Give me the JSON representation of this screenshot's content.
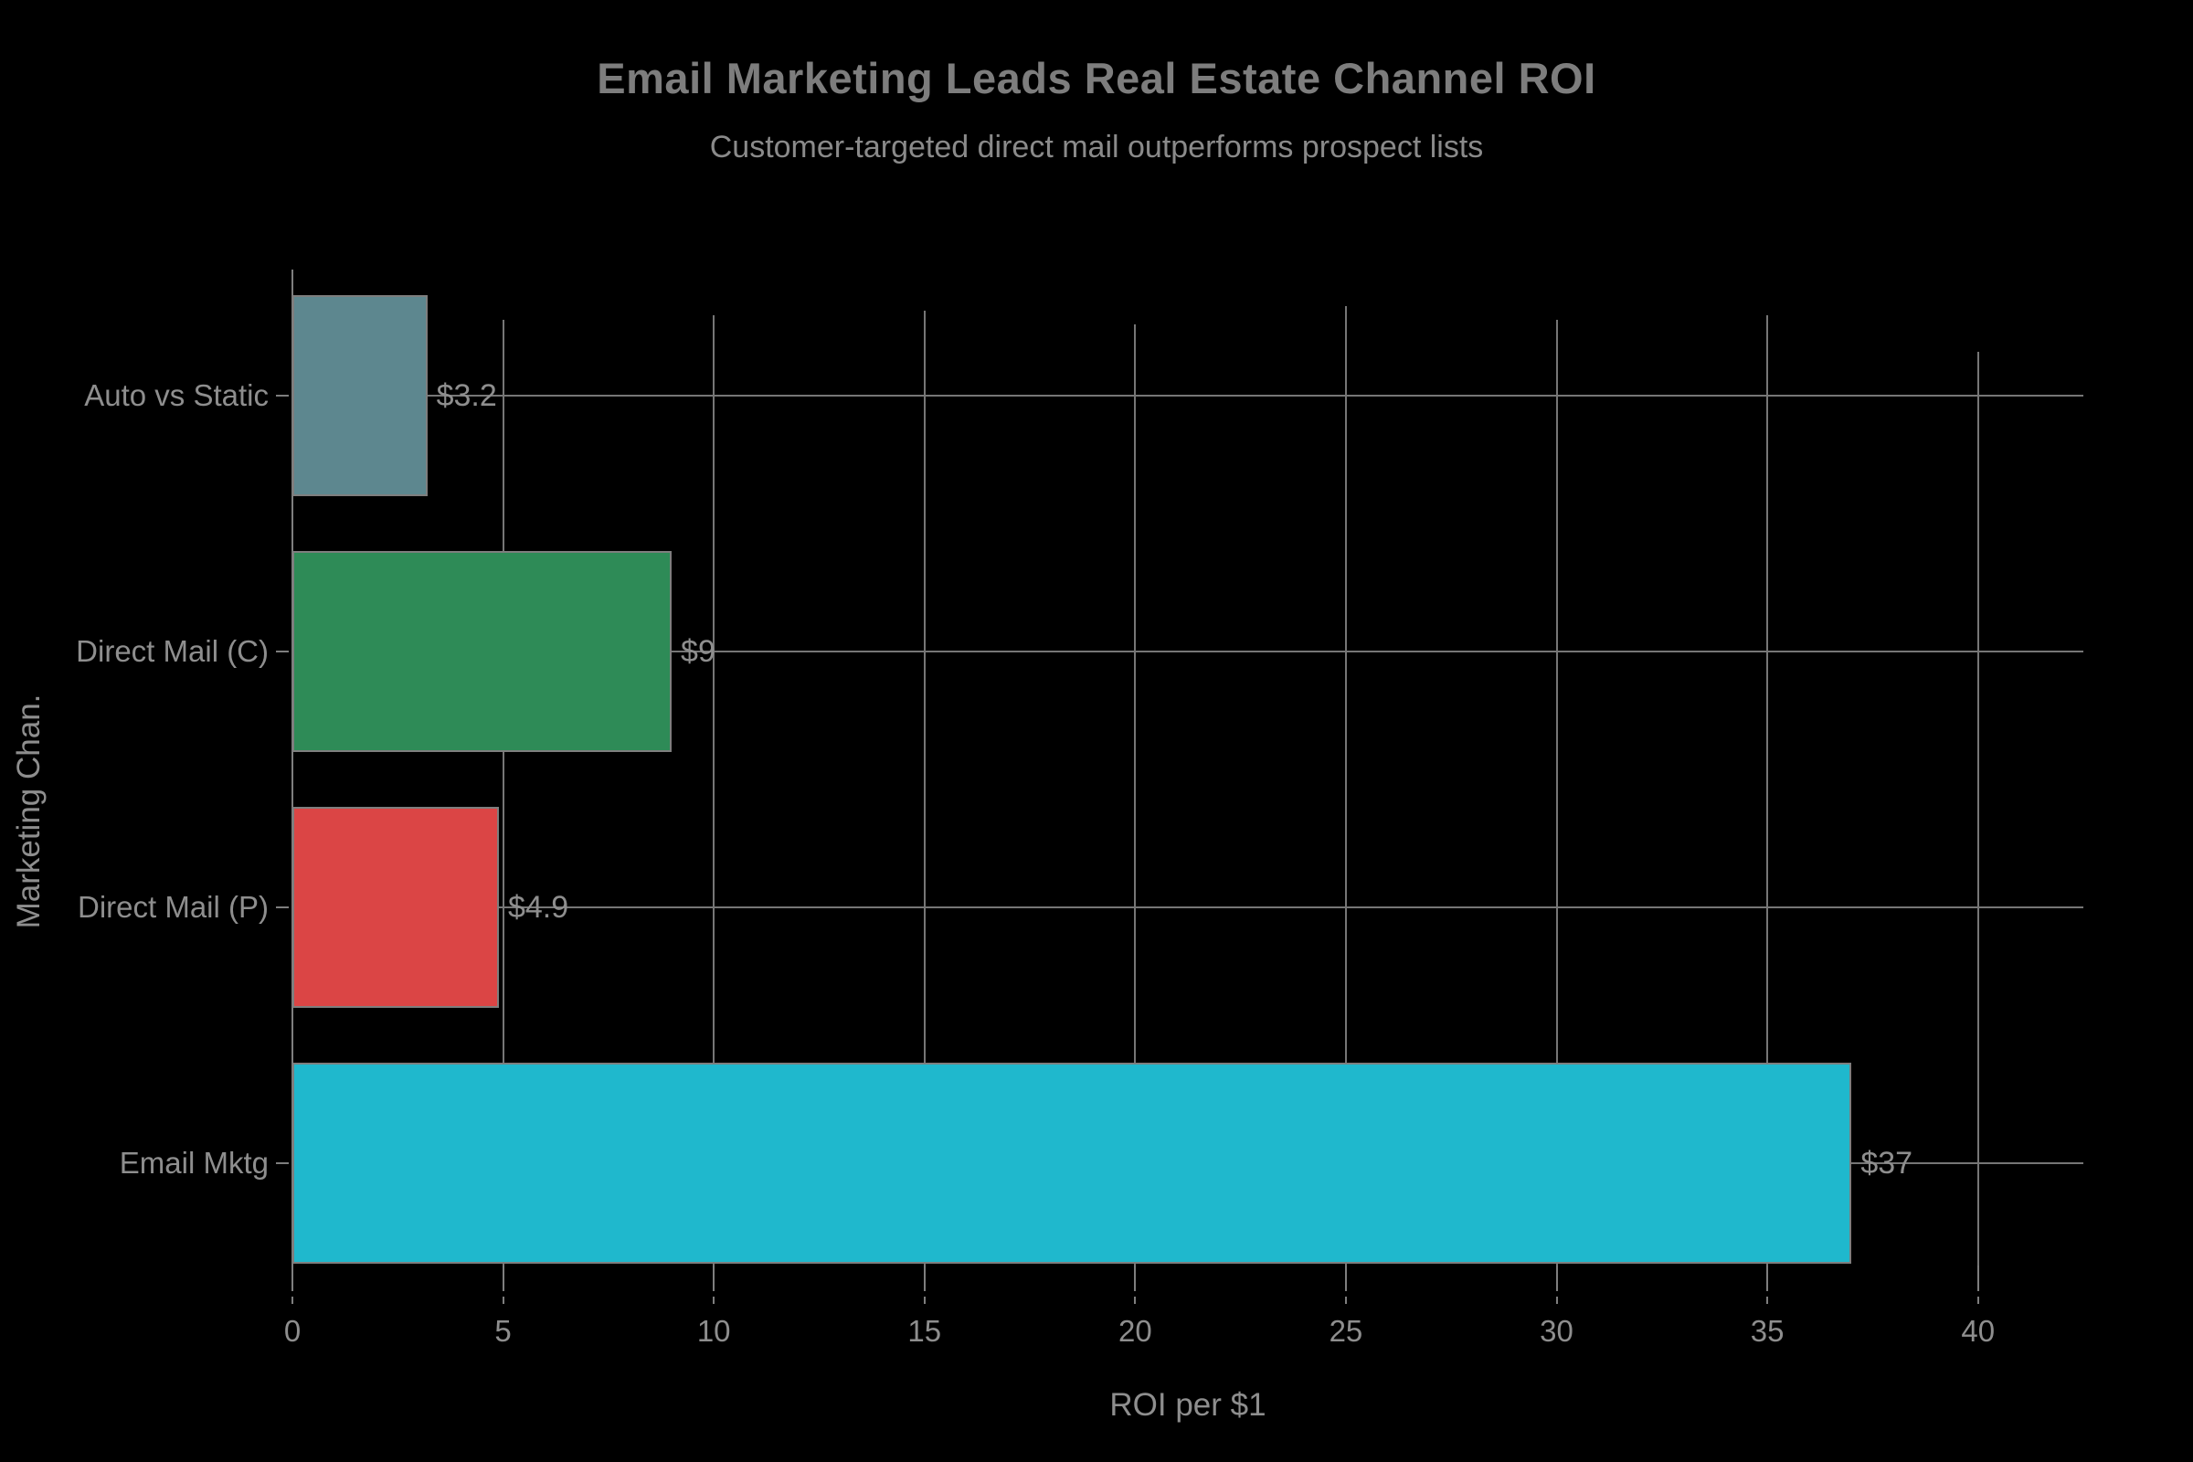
{
  "chart_data": {
    "type": "bar",
    "orientation": "horizontal",
    "title": "Email Marketing Leads Real Estate Channel ROI",
    "subtitle": "Customer-targeted direct mail outperforms prospect lists",
    "xlabel": "ROI per $1",
    "ylabel": "Marketing Chan.",
    "categories": [
      "Auto vs Static",
      "Direct Mail (C)",
      "Direct Mail (P)",
      "Email Mktg"
    ],
    "values": [
      3.2,
      9,
      4.9,
      37
    ],
    "value_labels": [
      "$3.2",
      "$9",
      "$4.9",
      "$37"
    ],
    "bar_colors": [
      "#5D878F",
      "#2E8B57",
      "#DB4545",
      "#1FB8CD"
    ],
    "x_ticks": [
      0,
      5,
      10,
      15,
      20,
      25,
      30,
      35,
      40
    ],
    "xlim": [
      0,
      42.5
    ],
    "grid": true,
    "legend": "none",
    "background_color": "#000000",
    "text_color": "#8e8e8e",
    "grid_color": "#767676"
  }
}
